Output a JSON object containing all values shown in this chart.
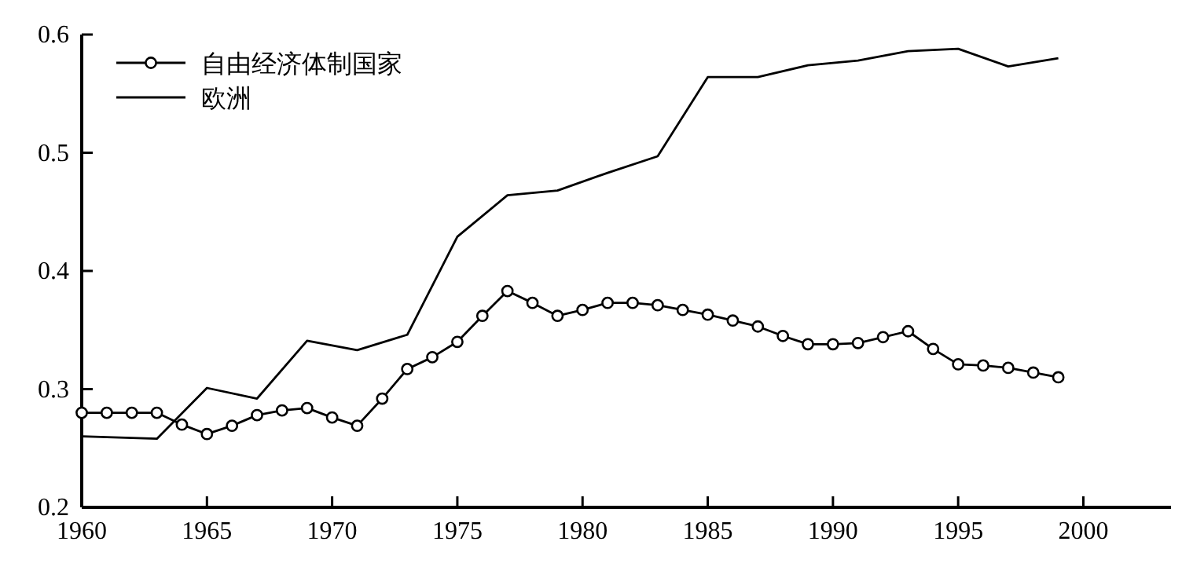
{
  "chart_data": {
    "type": "line",
    "legend": "top left",
    "grid": false,
    "xlim": [
      1960,
      2003.5
    ],
    "xticks": [
      1960,
      1965,
      1970,
      1975,
      1980,
      1985,
      1990,
      1995,
      2000
    ],
    "ylim": [
      0.2,
      0.6
    ],
    "yticks": [
      {
        "value": 0.2,
        "label": "0.2"
      },
      {
        "value": 0.3,
        "label": "0.3"
      },
      {
        "value": 0.4,
        "label": "0.4"
      },
      {
        "value": 0.5,
        "label": "0.5"
      },
      {
        "value": 0.6,
        "label": "0.6"
      }
    ],
    "series": [
      {
        "name": "自由经济体制国家",
        "color": "#000000",
        "marker": "circle",
        "x": [
          1960,
          1961,
          1962,
          1963,
          1964,
          1965,
          1966,
          1967,
          1968,
          1969,
          1970,
          1971,
          1972,
          1973,
          1974,
          1975,
          1976,
          1977,
          1978,
          1979,
          1980,
          1981,
          1982,
          1983,
          1984,
          1985,
          1986,
          1987,
          1988,
          1989,
          1990,
          1991,
          1992,
          1993,
          1994,
          1995,
          1996,
          1997,
          1998,
          1999
        ],
        "values": [
          0.28,
          0.28,
          0.28,
          0.28,
          0.27,
          0.262,
          0.269,
          0.278,
          0.282,
          0.284,
          0.276,
          0.269,
          0.292,
          0.317,
          0.327,
          0.34,
          0.362,
          0.383,
          0.373,
          0.362,
          0.367,
          0.373,
          0.373,
          0.371,
          0.367,
          0.363,
          0.358,
          0.353,
          0.345,
          0.338,
          0.338,
          0.339,
          0.344,
          0.349,
          0.334,
          0.321,
          0.32,
          0.318,
          0.314,
          0.31
        ]
      },
      {
        "name": "欧洲",
        "color": "#000000",
        "marker": "none",
        "x": [
          1960,
          1963,
          1965,
          1967,
          1969,
          1971,
          1973,
          1975,
          1977,
          1979,
          1981,
          1983,
          1985,
          1987,
          1989,
          1991,
          1993,
          1995,
          1997,
          1999
        ],
        "values": [
          0.26,
          0.258,
          0.301,
          0.292,
          0.341,
          0.333,
          0.346,
          0.429,
          0.464,
          0.468,
          0.483,
          0.497,
          0.564,
          0.564,
          0.574,
          0.578,
          0.586,
          0.588,
          0.573,
          0.58
        ]
      }
    ]
  }
}
